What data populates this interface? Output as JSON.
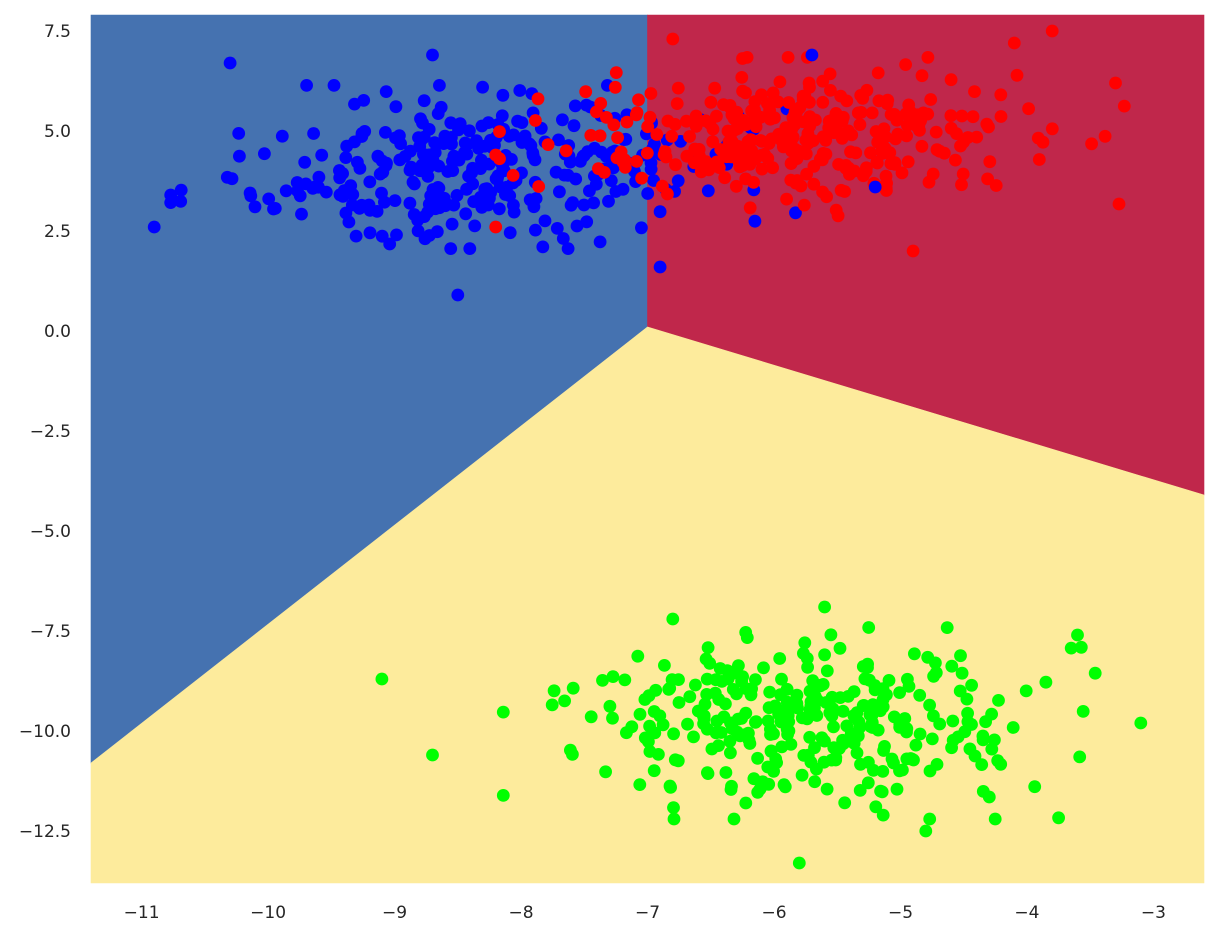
{
  "chart_data": {
    "type": "scatter",
    "title": "",
    "xlabel": "",
    "ylabel": "",
    "xlim": [
      -11.4,
      -2.6
    ],
    "ylim": [
      -13.8,
      7.9
    ],
    "grid": false,
    "legend": "none",
    "x_ticks": [
      -11,
      -10,
      -9,
      -8,
      -7,
      -6,
      -5,
      -4,
      -3
    ],
    "x_tick_labels": [
      "−11",
      "−10",
      "−9",
      "−8",
      "−7",
      "−6",
      "−5",
      "−4",
      "−3"
    ],
    "y_ticks": [
      7.5,
      5.0,
      2.5,
      0.0,
      -2.5,
      -5.0,
      -7.5,
      -10.0,
      -12.5
    ],
    "y_tick_labels": [
      "7.5",
      "5.0",
      "2.5",
      "0.0",
      "−2.5",
      "−5.0",
      "−7.5",
      "−10.0",
      "−12.5"
    ],
    "decision_regions": [
      {
        "class": "blue",
        "color": "#4572b0",
        "polygon": [
          [
            -11.4,
            7.9
          ],
          [
            -7.0,
            7.9
          ],
          [
            -7.0,
            0.1
          ],
          [
            -11.4,
            -10.8
          ]
        ]
      },
      {
        "class": "red",
        "color": "#c0274b",
        "polygon": [
          [
            -7.0,
            7.9
          ],
          [
            -2.6,
            7.9
          ],
          [
            -2.6,
            -4.1
          ],
          [
            -7.0,
            0.1
          ]
        ]
      },
      {
        "class": "green",
        "color": "#fdeb9c",
        "polygon": [
          [
            -11.4,
            -10.8
          ],
          [
            -7.0,
            0.1
          ],
          [
            -2.6,
            -4.1
          ],
          [
            -2.6,
            -13.8
          ],
          [
            -11.4,
            -13.8
          ]
        ]
      }
    ],
    "clusters": [
      {
        "class": "blue",
        "color": "#0000ff",
        "center": [
          -8.3,
          4.1
        ],
        "spread": [
          0.95,
          0.85
        ],
        "count": 330
      },
      {
        "class": "red",
        "color": "#ff0000",
        "center": [
          -5.7,
          4.8
        ],
        "spread": [
          0.95,
          0.85
        ],
        "count": 330
      },
      {
        "class": "green",
        "color": "#00ff00",
        "center": [
          -5.8,
          -9.8
        ],
        "spread": [
          0.9,
          1.0
        ],
        "count": 330
      }
    ],
    "outliers": [
      {
        "class": "blue",
        "x": -10.3,
        "y": 6.7
      },
      {
        "class": "blue",
        "x": -8.7,
        "y": 6.9
      },
      {
        "class": "blue",
        "x": -10.9,
        "y": 2.6
      },
      {
        "class": "blue",
        "x": -8.5,
        "y": 0.9
      },
      {
        "class": "blue",
        "x": -6.9,
        "y": 1.6
      },
      {
        "class": "blue",
        "x": -5.7,
        "y": 6.9
      },
      {
        "class": "blue",
        "x": -5.2,
        "y": 3.6
      },
      {
        "class": "red",
        "x": -3.8,
        "y": 7.5
      },
      {
        "class": "red",
        "x": -4.1,
        "y": 7.2
      },
      {
        "class": "red",
        "x": -3.3,
        "y": 6.2
      },
      {
        "class": "red",
        "x": -4.9,
        "y": 2.0
      },
      {
        "class": "red",
        "x": -8.2,
        "y": 4.4
      },
      {
        "class": "red",
        "x": -8.2,
        "y": 2.6
      },
      {
        "class": "red",
        "x": -6.8,
        "y": 7.3
      },
      {
        "class": "green",
        "x": -9.1,
        "y": -8.7
      },
      {
        "class": "green",
        "x": -8.7,
        "y": -10.6
      },
      {
        "class": "green",
        "x": -5.6,
        "y": -6.9
      },
      {
        "class": "green",
        "x": -6.8,
        "y": -7.2
      },
      {
        "class": "green",
        "x": -3.1,
        "y": -9.8
      },
      {
        "class": "green",
        "x": -5.8,
        "y": -13.3
      },
      {
        "class": "green",
        "x": -4.8,
        "y": -12.5
      },
      {
        "class": "green",
        "x": -3.6,
        "y": -7.6
      }
    ]
  }
}
